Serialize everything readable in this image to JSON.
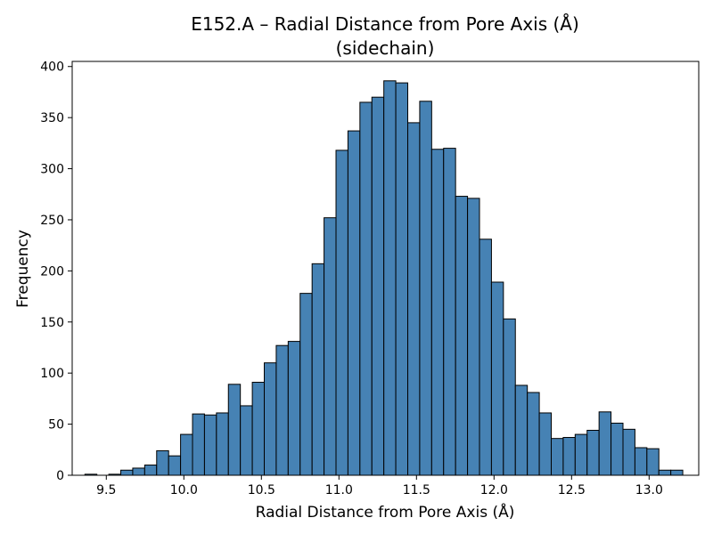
{
  "chart_data": {
    "type": "bar",
    "title": "E152.A – Radial Distance from Pore Axis (Å)",
    "subtitle": "(sidechain)",
    "xlabel": "Radial Distance from Pore Axis (Å)",
    "ylabel": "Frequency",
    "xlim": [
      9.28,
      13.32
    ],
    "ylim": [
      0,
      405
    ],
    "x_ticks": [
      {
        "value": 9.5,
        "label": "9.5"
      },
      {
        "value": 10.0,
        "label": "10.0"
      },
      {
        "value": 10.5,
        "label": "10.5"
      },
      {
        "value": 11.0,
        "label": "11.0"
      },
      {
        "value": 11.5,
        "label": "11.5"
      },
      {
        "value": 12.0,
        "label": "12.0"
      },
      {
        "value": 12.5,
        "label": "12.5"
      },
      {
        "value": 13.0,
        "label": "13.0"
      }
    ],
    "y_ticks": [
      {
        "value": 0,
        "label": "0"
      },
      {
        "value": 50,
        "label": "50"
      },
      {
        "value": 100,
        "label": "100"
      },
      {
        "value": 150,
        "label": "150"
      },
      {
        "value": 200,
        "label": "200"
      },
      {
        "value": 250,
        "label": "250"
      },
      {
        "value": 300,
        "label": "300"
      },
      {
        "value": 350,
        "label": "350"
      },
      {
        "value": 400,
        "label": "400"
      }
    ],
    "bin_start": 9.362,
    "bin_width": 0.0771,
    "counts": [
      1,
      0,
      1,
      5,
      7,
      10,
      24,
      19,
      40,
      60,
      59,
      61,
      89,
      68,
      91,
      110,
      127,
      131,
      178,
      207,
      252,
      318,
      337,
      365,
      370,
      386,
      384,
      345,
      366,
      319,
      320,
      273,
      271,
      231,
      189,
      153,
      88,
      81,
      61,
      36,
      37,
      40,
      44,
      62,
      51,
      45,
      27,
      26,
      5,
      5
    ],
    "bar_color": "#4682b4",
    "edge_color": "#000000",
    "grid": false,
    "legend": "none"
  }
}
